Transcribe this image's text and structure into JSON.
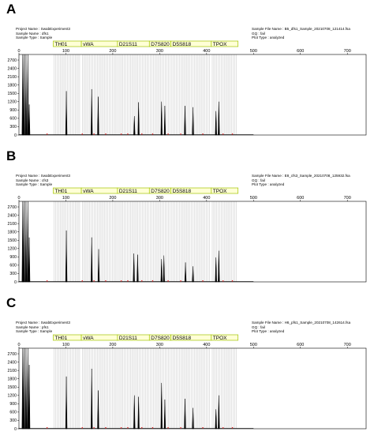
{
  "figure": {
    "panels": [
      {
        "letter": "A",
        "project_name": "Project Name : SwabExperiment3",
        "sample_name": "Sample Name : dfs1",
        "sample_type": "Sample Type : Sample",
        "sample_file": "Sample File Name : B5_dfs1_Sample_20210708_121414.fsa",
        "gq": "GQ : fail",
        "plot_type": "Plot Type : analyzed"
      },
      {
        "letter": "B",
        "project_name": "Project Name : SwabExperiment3",
        "sample_name": "Sample Name : cfs3",
        "sample_type": "Sample Type : Sample",
        "sample_file": "Sample File Name : E8_cfs3_Sample_20210708_125932.fsa",
        "gq": "GQ : fail",
        "plot_type": "Plot Type : analyzed"
      },
      {
        "letter": "C",
        "project_name": "Project Name : SwabExperiment3",
        "sample_name": "Sample Name : pfs1",
        "sample_type": "Sample Type : Sample",
        "sample_file": "Sample File Name : H6_pfs1_Sample_20210708_142614.fsa",
        "gq": "GQ : fail",
        "plot_type": "Plot Type : analyzed"
      }
    ]
  },
  "chart_data": [
    {
      "type": "line",
      "panel": "A",
      "xlim": [
        0,
        740
      ],
      "ylim": [
        0,
        2900
      ],
      "x_ticks": [
        "0",
        "100",
        "200",
        "300",
        "400",
        "500",
        "600",
        "700"
      ],
      "y_ticks": [
        "0",
        "300",
        "600",
        "900",
        "1200",
        "1500",
        "1800",
        "2100",
        "2400",
        "2700"
      ],
      "markers": [
        {
          "label": "TH01",
          "start": 73,
          "end": 133
        },
        {
          "label": "vWA",
          "start": 133,
          "end": 210
        },
        {
          "label": "D21S11",
          "start": 210,
          "end": 278
        },
        {
          "label": "D7S820",
          "start": 278,
          "end": 324
        },
        {
          "label": "D5S818",
          "start": 324,
          "end": 410
        },
        {
          "label": "TPOX",
          "start": 410,
          "end": 467
        }
      ],
      "peaks": [
        {
          "x": 8,
          "height": 2900
        },
        {
          "x": 11,
          "height": 2900
        },
        {
          "x": 15,
          "height": 2900
        },
        {
          "x": 19,
          "height": 2900
        },
        {
          "x": 22,
          "height": 1100
        },
        {
          "x": 101,
          "height": 1580
        },
        {
          "x": 155,
          "height": 1650
        },
        {
          "x": 169,
          "height": 1380
        },
        {
          "x": 246,
          "height": 680
        },
        {
          "x": 255,
          "height": 1180
        },
        {
          "x": 304,
          "height": 1200
        },
        {
          "x": 311,
          "height": 1050
        },
        {
          "x": 354,
          "height": 1050
        },
        {
          "x": 371,
          "height": 1000
        },
        {
          "x": 420,
          "height": 860
        },
        {
          "x": 426,
          "height": 1200
        }
      ]
    },
    {
      "type": "line",
      "panel": "B",
      "xlim": [
        0,
        740
      ],
      "ylim": [
        0,
        2900
      ],
      "x_ticks": [
        "0",
        "100",
        "200",
        "300",
        "400",
        "500",
        "600",
        "700"
      ],
      "y_ticks": [
        "0",
        "300",
        "600",
        "900",
        "1200",
        "1500",
        "1800",
        "2100",
        "2400",
        "2700"
      ],
      "markers": [
        {
          "label": "TH01",
          "start": 73,
          "end": 133
        },
        {
          "label": "vWA",
          "start": 133,
          "end": 210
        },
        {
          "label": "D21S11",
          "start": 210,
          "end": 278
        },
        {
          "label": "D7S820",
          "start": 278,
          "end": 324
        },
        {
          "label": "D5S818",
          "start": 324,
          "end": 410
        },
        {
          "label": "TPOX",
          "start": 410,
          "end": 467
        }
      ],
      "peaks": [
        {
          "x": 8,
          "height": 2900
        },
        {
          "x": 11,
          "height": 2900
        },
        {
          "x": 15,
          "height": 2900
        },
        {
          "x": 19,
          "height": 2900
        },
        {
          "x": 22,
          "height": 1600
        },
        {
          "x": 101,
          "height": 1850
        },
        {
          "x": 155,
          "height": 1600
        },
        {
          "x": 170,
          "height": 1180
        },
        {
          "x": 245,
          "height": 1020
        },
        {
          "x": 253,
          "height": 980
        },
        {
          "x": 304,
          "height": 820
        },
        {
          "x": 309,
          "height": 950
        },
        {
          "x": 355,
          "height": 700
        },
        {
          "x": 371,
          "height": 560
        },
        {
          "x": 420,
          "height": 880
        },
        {
          "x": 426,
          "height": 1120
        }
      ]
    },
    {
      "type": "line",
      "panel": "C",
      "xlim": [
        0,
        740
      ],
      "ylim": [
        0,
        2900
      ],
      "x_ticks": [
        "0",
        "100",
        "200",
        "300",
        "400",
        "500",
        "600",
        "700"
      ],
      "y_ticks": [
        "0",
        "300",
        "600",
        "900",
        "1200",
        "1500",
        "1800",
        "2100",
        "2400",
        "2700"
      ],
      "markers": [
        {
          "label": "TH01",
          "start": 73,
          "end": 133
        },
        {
          "label": "vWA",
          "start": 133,
          "end": 210
        },
        {
          "label": "D21S11",
          "start": 210,
          "end": 278
        },
        {
          "label": "D7S820",
          "start": 278,
          "end": 324
        },
        {
          "label": "D5S818",
          "start": 324,
          "end": 410
        },
        {
          "label": "TPOX",
          "start": 410,
          "end": 467
        }
      ],
      "peaks": [
        {
          "x": 8,
          "height": 2900
        },
        {
          "x": 11,
          "height": 2900
        },
        {
          "x": 15,
          "height": 2900
        },
        {
          "x": 19,
          "height": 2900
        },
        {
          "x": 22,
          "height": 2300
        },
        {
          "x": 101,
          "height": 1880
        },
        {
          "x": 155,
          "height": 2160
        },
        {
          "x": 169,
          "height": 1380
        },
        {
          "x": 246,
          "height": 1200
        },
        {
          "x": 255,
          "height": 1150
        },
        {
          "x": 304,
          "height": 1650
        },
        {
          "x": 311,
          "height": 1050
        },
        {
          "x": 354,
          "height": 1080
        },
        {
          "x": 371,
          "height": 750
        },
        {
          "x": 420,
          "height": 700
        },
        {
          "x": 426,
          "height": 1200
        }
      ]
    }
  ]
}
